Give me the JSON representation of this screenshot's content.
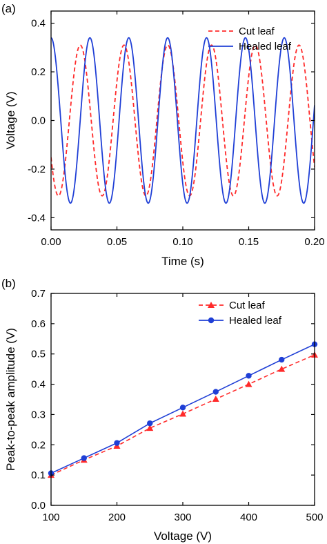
{
  "chart_data": [
    {
      "panel_label": "(a)",
      "type": "line",
      "title": "",
      "xlabel": "Time (s)",
      "ylabel": "Voltage (V)",
      "xlim": [
        0.0,
        0.2
      ],
      "ylim": [
        -0.45,
        0.45
      ],
      "xticks": [
        "0.00",
        "0.05",
        "0.10",
        "0.15",
        "0.20"
      ],
      "yticks": [
        "-0.4",
        "-0.2",
        "0.0",
        "0.2",
        "0.4"
      ],
      "legend_position": "top-right",
      "grid": false,
      "series": [
        {
          "name": "Cut leaf",
          "color": "#ff2a2a",
          "line_style": "dashed",
          "waveform": "sinusoid",
          "amplitude": 0.31,
          "period": 0.0332,
          "first_peak_time": 0.0222
        },
        {
          "name": "Healed leaf",
          "color": "#1f3fd6",
          "line_style": "solid",
          "waveform": "sinusoid",
          "amplitude": 0.34,
          "period": 0.0295,
          "first_peak_time": 0.0
        }
      ]
    },
    {
      "panel_label": "(b)",
      "type": "line",
      "title": "",
      "xlabel": "Voltage (V)",
      "ylabel": "Peak-to-peak amplitude (V)",
      "xlim": [
        100,
        500
      ],
      "ylim": [
        0.0,
        0.7
      ],
      "xticks": [
        "100",
        "200",
        "300",
        "400",
        "500"
      ],
      "yticks": [
        "0.0",
        "0.1",
        "0.2",
        "0.3",
        "0.4",
        "0.5",
        "0.6",
        "0.7"
      ],
      "legend_position": "top-right",
      "grid": false,
      "x": [
        100,
        150,
        200,
        250,
        300,
        350,
        400,
        450,
        500
      ],
      "series": [
        {
          "name": "Cut leaf",
          "color": "#ff2a2a",
          "line_style": "dashed",
          "marker": "triangle",
          "values": [
            0.1,
            0.15,
            0.196,
            0.255,
            0.302,
            0.351,
            0.4,
            0.45,
            0.497
          ]
        },
        {
          "name": "Healed leaf",
          "color": "#1f3fd6",
          "line_style": "solid",
          "marker": "circle",
          "values": [
            0.106,
            0.156,
            0.206,
            0.271,
            0.323,
            0.375,
            0.428,
            0.481,
            0.532
          ]
        }
      ]
    }
  ]
}
